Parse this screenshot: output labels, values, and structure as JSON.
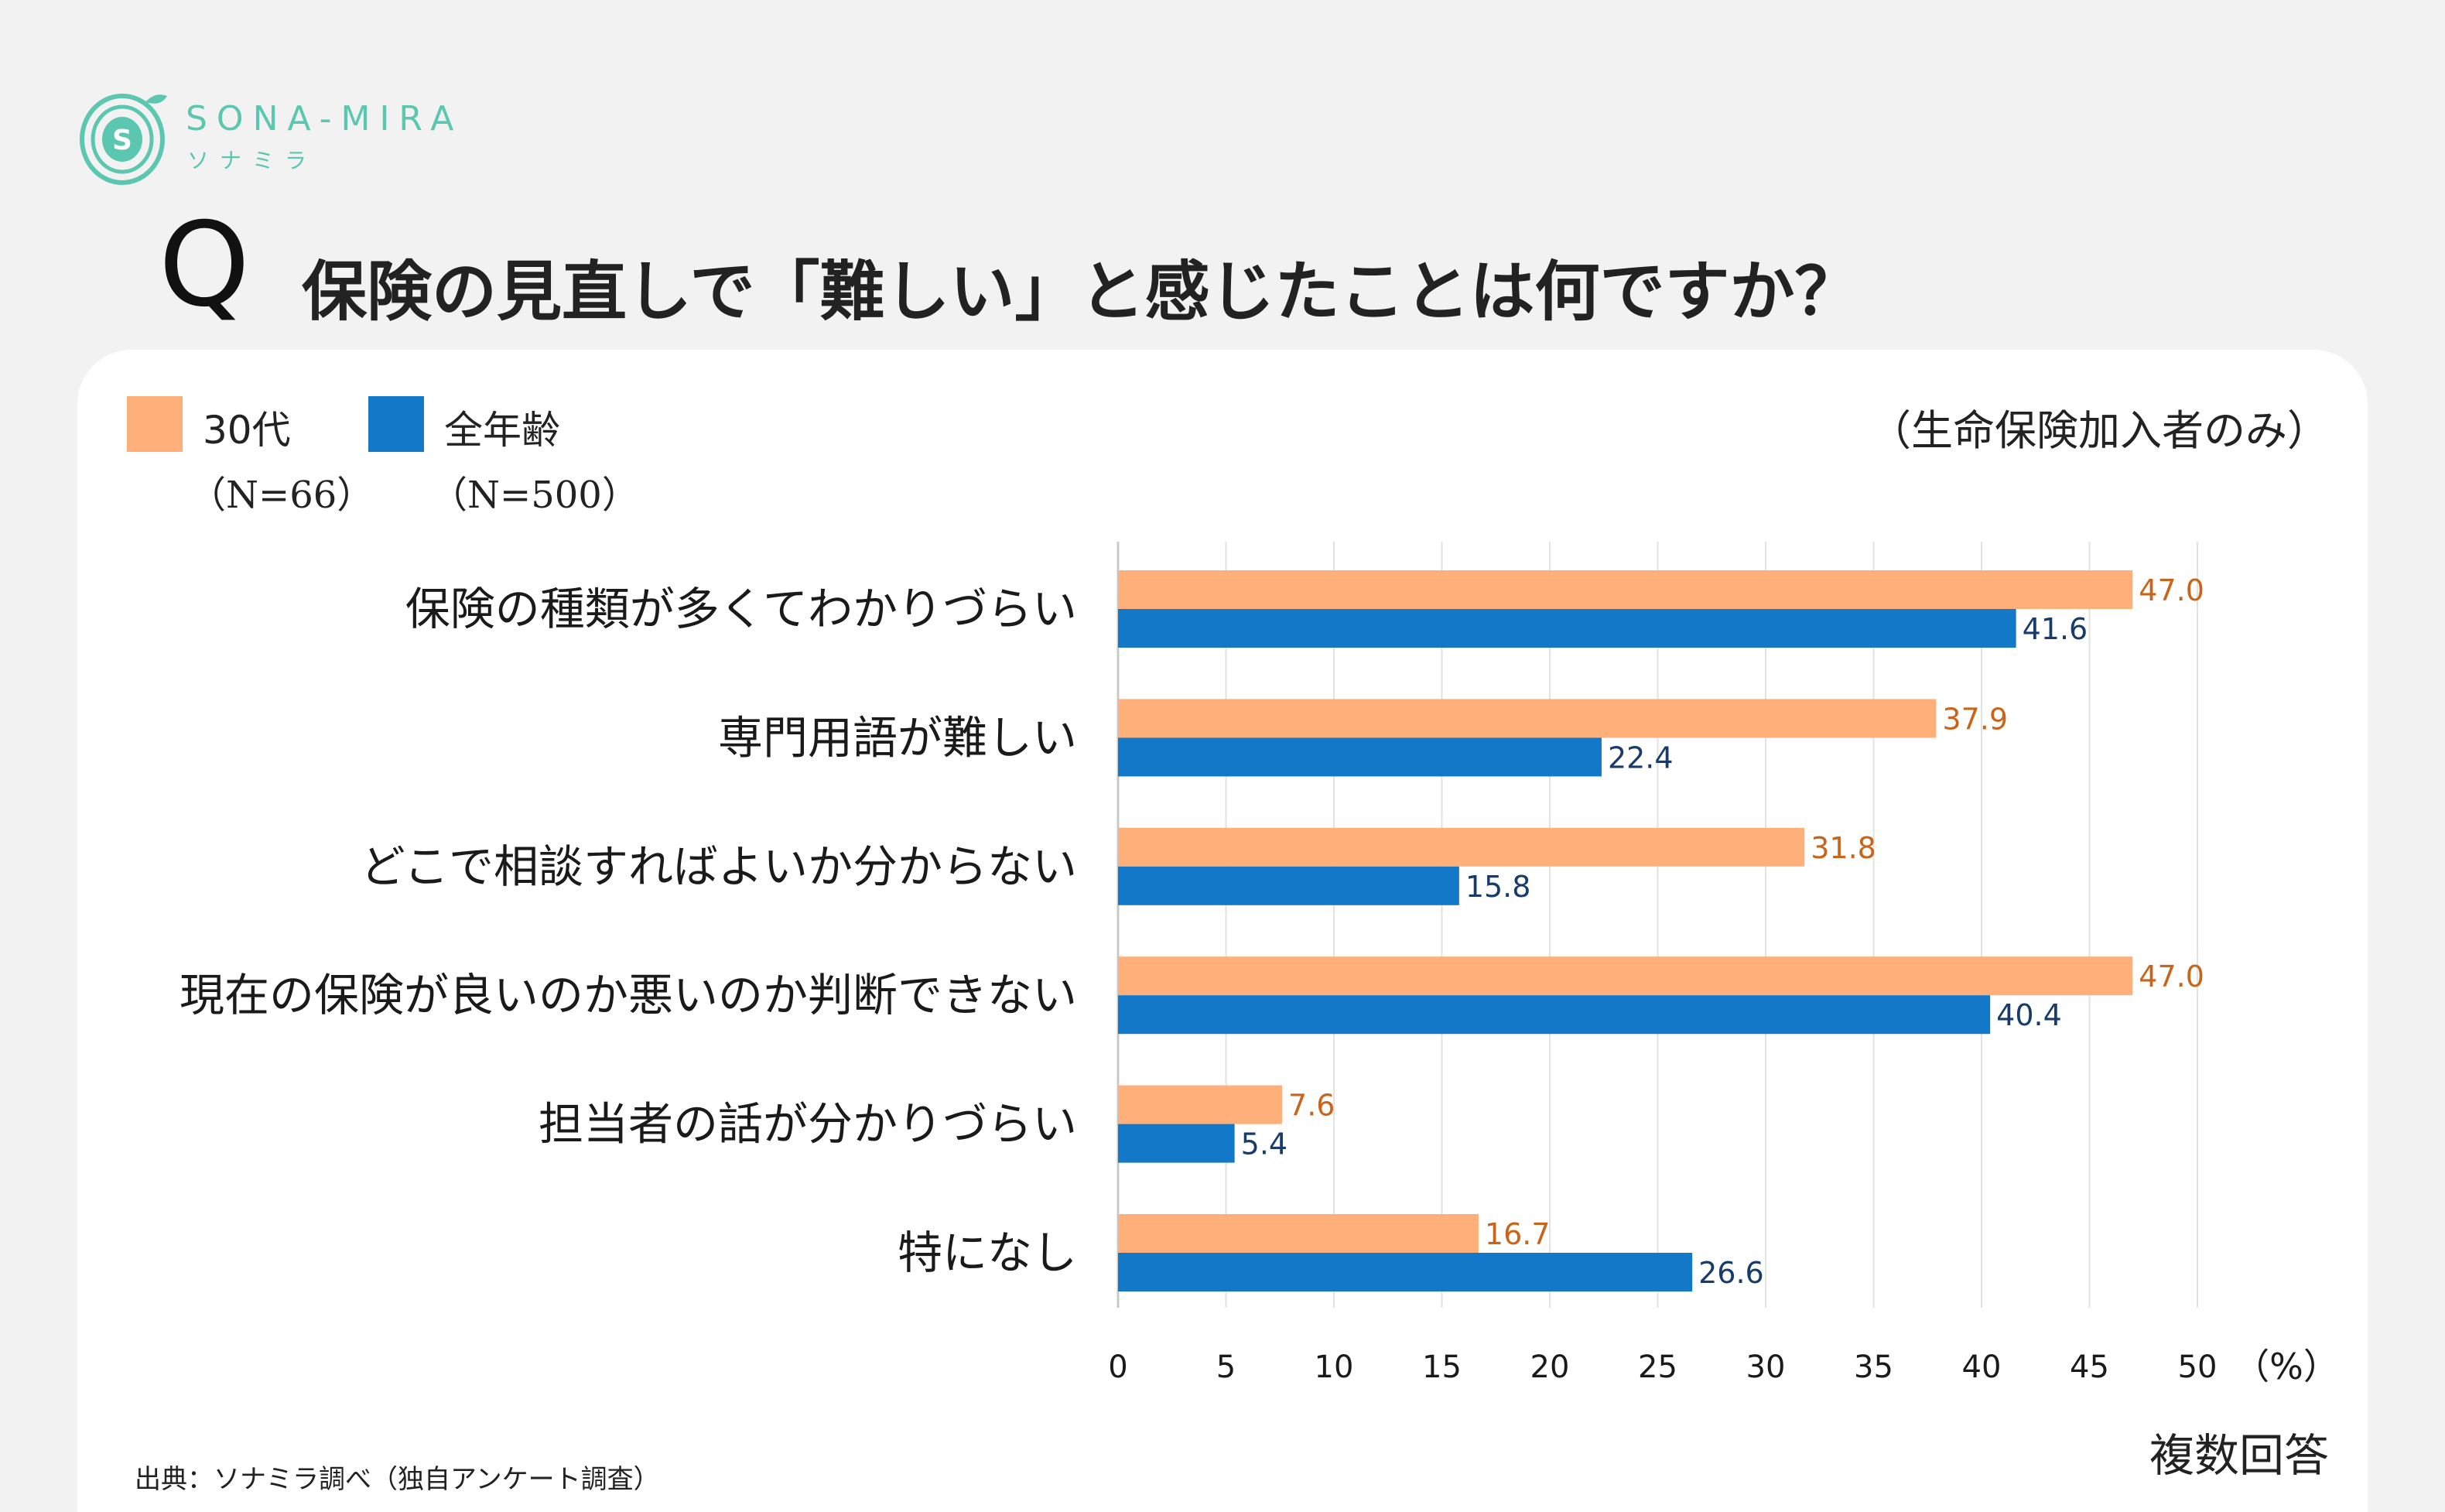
{
  "brand": {
    "name": "SONA-MIRA",
    "sub": "ソナミラ",
    "mark_letter": "S",
    "color": "#5cc7b0"
  },
  "question": {
    "marker": "Q",
    "text": "保険の見直しで「難しい」と感じたことは何ですか？"
  },
  "legend": {
    "items": [
      {
        "label": "30代",
        "n": "（N=66）",
        "color": "#ffb07a"
      },
      {
        "label": "全年齢",
        "n": "（N=500）",
        "color": "#1478c8"
      }
    ]
  },
  "note": "（生命保険加入者のみ）",
  "footer": {
    "source": "出典：ソナミラ調べ（独自アンケート調査）",
    "multi_answer": "複数回答"
  },
  "chart_data": {
    "type": "bar",
    "orientation": "horizontal",
    "categories": [
      "保険の種類が多くてわかりづらい",
      "専門用語が難しい",
      "どこで相談すればよいか分からない",
      "現在の保険が良いのか悪いのか判断できない",
      "担当者の話が分かりづらい",
      "特になし"
    ],
    "series": [
      {
        "name": "30代",
        "values": [
          47.0,
          37.9,
          31.8,
          47.0,
          7.6,
          16.7
        ],
        "color": "#ffb07a",
        "label_color": "#c8651b"
      },
      {
        "name": "全年齢",
        "values": [
          41.6,
          22.4,
          15.8,
          40.4,
          5.4,
          26.6
        ],
        "color": "#1478c8",
        "label_color": "#173b6b"
      }
    ],
    "xlim": [
      0,
      50
    ],
    "xticks": [
      "0",
      "5",
      "10",
      "15",
      "20",
      "25",
      "30",
      "35",
      "40",
      "45",
      "50"
    ],
    "unit": "（%）",
    "grid": true
  }
}
